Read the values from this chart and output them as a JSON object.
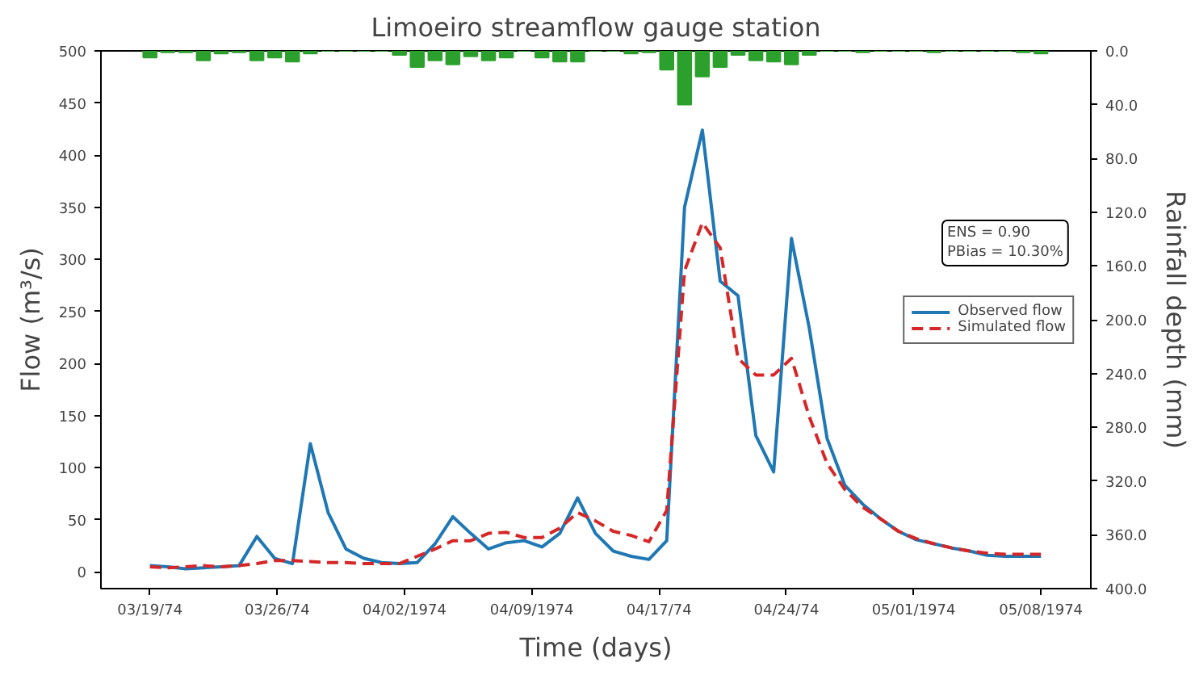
{
  "chart_data": {
    "type": "line",
    "title": "Limoeiro streamflow gauge station",
    "xlabel": "Time (days)",
    "ylabel": "Flow (m³/s)",
    "y2label": "Rainfall depth (mm)",
    "x": [
      "1974-03-19",
      "1974-03-20",
      "1974-03-21",
      "1974-03-22",
      "1974-03-23",
      "1974-03-24",
      "1974-03-25",
      "1974-03-26",
      "1974-03-27",
      "1974-03-28",
      "1974-03-29",
      "1974-03-30",
      "1974-03-31",
      "1974-04-01",
      "1974-04-02",
      "1974-04-03",
      "1974-04-04",
      "1974-04-05",
      "1974-04-06",
      "1974-04-07",
      "1974-04-08",
      "1974-04-09",
      "1974-04-10",
      "1974-04-11",
      "1974-04-12",
      "1974-04-13",
      "1974-04-14",
      "1974-04-15",
      "1974-04-16",
      "1974-04-17",
      "1974-04-18",
      "1974-04-19",
      "1974-04-20",
      "1974-04-21",
      "1974-04-22",
      "1974-04-23",
      "1974-04-24",
      "1974-04-25",
      "1974-04-26",
      "1974-04-27",
      "1974-04-28",
      "1974-04-29",
      "1974-04-30",
      "1974-05-01",
      "1974-05-02",
      "1974-05-03",
      "1974-05-04",
      "1974-05-05",
      "1974-05-06",
      "1974-05-07",
      "1974-05-08"
    ],
    "xlim": [
      "1974-03-16T06:00",
      "1974-05-10T19:12"
    ],
    "xticks": [
      {
        "value": "1974-03-19",
        "label": "03/19/74"
      },
      {
        "value": "1974-03-26T03:26",
        "label": "03/26/74"
      },
      {
        "value": "1974-04-02T06:51",
        "label": "04/02/1974"
      },
      {
        "value": "1974-04-09T10:17",
        "label": "04/09/1974"
      },
      {
        "value": "1974-04-16T13:43",
        "label": "04/17/74"
      },
      {
        "value": "1974-04-23T17:09",
        "label": "04/24/74"
      },
      {
        "value": "1974-04-30T20:34",
        "label": "05/01/1974"
      },
      {
        "value": "1974-05-08",
        "label": "05/08/1974"
      }
    ],
    "ylim": [
      -16,
      500
    ],
    "yticks": [
      0,
      50,
      100,
      150,
      200,
      250,
      300,
      350,
      400,
      450,
      500
    ],
    "y2lim": [
      400,
      0
    ],
    "y2ticks": [
      {
        "value": 0,
        "label": "0.0"
      },
      {
        "value": 40,
        "label": "40.0"
      },
      {
        "value": 80,
        "label": "80.0"
      },
      {
        "value": 120,
        "label": "120.0"
      },
      {
        "value": 160,
        "label": "160.0"
      },
      {
        "value": 200,
        "label": "200.0"
      },
      {
        "value": 240,
        "label": "240.0"
      },
      {
        "value": 280,
        "label": "280.0"
      },
      {
        "value": 320,
        "label": "320.0"
      },
      {
        "value": 360,
        "label": "360.0"
      },
      {
        "value": 400,
        "label": "400.0"
      }
    ],
    "legend": "right",
    "annotations": [
      "ENS = 0.90\nPBias = 10.30%"
    ],
    "series": [
      {
        "name": "Observed flow",
        "color": "#1f77b4",
        "line_style": "solid",
        "values": [
          6,
          5,
          3,
          4,
          5,
          6,
          34,
          13,
          8,
          123,
          57,
          22,
          13,
          9,
          8,
          9,
          27,
          53,
          37,
          22,
          28,
          30,
          24,
          37,
          71,
          37,
          20,
          15,
          12,
          30,
          350,
          424,
          279,
          265,
          131,
          96,
          320,
          234,
          128,
          83,
          65,
          51,
          39,
          31,
          27,
          23,
          20,
          16,
          15,
          15,
          15
        ]
      },
      {
        "name": "Simulated flow",
        "color": "#d62728",
        "line_style": "dashed",
        "values": [
          5,
          4,
          5,
          6,
          5,
          6,
          8,
          11,
          11,
          10,
          9,
          9,
          8,
          8,
          8,
          15,
          22,
          30,
          30,
          37,
          38,
          33,
          33,
          42,
          57,
          49,
          39,
          35,
          29,
          59,
          289,
          335,
          311,
          205,
          189,
          189,
          205,
          149,
          104,
          79,
          62,
          51,
          39,
          32,
          27,
          23,
          20,
          18,
          17,
          17,
          17
        ]
      },
      {
        "type": "bar",
        "axis": "y2",
        "color": "#2ca02c",
        "values": [
          5,
          1,
          1,
          7,
          2,
          1,
          7,
          5,
          8,
          2,
          0,
          0,
          0,
          0,
          3,
          12,
          7,
          10,
          4,
          7,
          5,
          0,
          5,
          8,
          8,
          0,
          0,
          2,
          1,
          14,
          40,
          19,
          12,
          3,
          7,
          8,
          10,
          3,
          0,
          0,
          1,
          0,
          0,
          0,
          1,
          0,
          0,
          0,
          0,
          1,
          2
        ]
      }
    ]
  }
}
